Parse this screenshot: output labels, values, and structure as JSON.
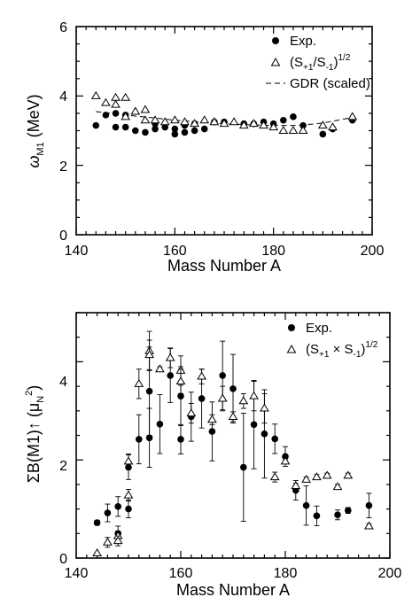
{
  "chart_data": [
    {
      "type": "scatter",
      "title": "",
      "xlabel": "Mass Number A",
      "ylabel": "ω_M1 (MeV)",
      "ylabel_parts": {
        "symbol": "ω",
        "sub": "M1",
        "unit": "(MeV)"
      },
      "xlim": [
        140,
        200
      ],
      "ylim": [
        0,
        6
      ],
      "xticks": [
        "140",
        "160",
        "180",
        "200"
      ],
      "yticks": [
        "0",
        "2",
        "4",
        "6"
      ],
      "legend_position": "top-right",
      "series": [
        {
          "name": "Exp.",
          "legend_parts": {
            "text": "Exp."
          },
          "marker": "filled-circle",
          "x": [
            144,
            146,
            148,
            148,
            150,
            150,
            152,
            154,
            156,
            156,
            158,
            160,
            160,
            162,
            162,
            164,
            164,
            166,
            168,
            170,
            174,
            176,
            178,
            180,
            182,
            184,
            186,
            190,
            192,
            196
          ],
          "y": [
            3.15,
            3.45,
            3.5,
            3.1,
            3.45,
            3.1,
            3.0,
            2.95,
            3.05,
            3.2,
            3.1,
            2.9,
            3.05,
            2.95,
            3.15,
            3.0,
            3.2,
            3.05,
            3.25,
            3.25,
            3.2,
            3.2,
            3.25,
            3.2,
            3.3,
            3.4,
            3.15,
            2.9,
            3.05,
            3.3
          ]
        },
        {
          "name": "(S+1/S-1)^1/2",
          "legend_parts": {
            "open": "(S",
            "sub1": "+1",
            "mid": "/S",
            "sub2": "-1",
            "close": ")",
            "sup": "1/2"
          },
          "marker": "open-triangle",
          "x": [
            144,
            146,
            148,
            148,
            150,
            150,
            152,
            154,
            154,
            156,
            158,
            160,
            162,
            164,
            166,
            168,
            170,
            172,
            174,
            176,
            178,
            180,
            182,
            184,
            186,
            190,
            192,
            196
          ],
          "y": [
            4.0,
            3.8,
            3.95,
            3.75,
            3.95,
            3.4,
            3.55,
            3.6,
            3.3,
            3.3,
            3.25,
            3.3,
            3.25,
            3.2,
            3.3,
            3.25,
            3.2,
            3.25,
            3.15,
            3.2,
            3.15,
            3.1,
            3.0,
            3.0,
            3.0,
            3.15,
            3.1,
            3.4
          ]
        },
        {
          "name": "GDR (scaled)",
          "legend_parts": {
            "text": "GDR (scaled)"
          },
          "marker": "dashed-line",
          "x": [
            144,
            150,
            155,
            160,
            165,
            170,
            175,
            180,
            185,
            190,
            196
          ],
          "y": [
            3.55,
            3.45,
            3.38,
            3.3,
            3.25,
            3.2,
            3.17,
            3.15,
            3.15,
            3.22,
            3.38
          ]
        }
      ]
    },
    {
      "type": "scatter",
      "title": "",
      "xlabel": "Mass Number A",
      "ylabel": "ΣB(M1)↑ (μN²)",
      "ylabel_parts": {
        "main": "ΣB(M1)↑ (μ",
        "sub": "N",
        "sup": "2",
        "close": ")"
      },
      "xlim": [
        140,
        200
      ],
      "ylim": [
        0,
        5
      ],
      "xticks": [
        "140",
        "160",
        "180",
        "200"
      ],
      "yticks": [
        "0",
        "2",
        "4"
      ],
      "legend_position": "top-right",
      "series": [
        {
          "name": "Exp.",
          "legend_parts": {
            "text": "Exp."
          },
          "marker": "filled-circle",
          "x": [
            144,
            146,
            148,
            148,
            150,
            150,
            152,
            154,
            154,
            156,
            158,
            160,
            160,
            162,
            164,
            166,
            168,
            170,
            172,
            174,
            176,
            178,
            180,
            182,
            184,
            186,
            190,
            192,
            196
          ],
          "y": [
            0.72,
            0.92,
            1.05,
            0.5,
            1.85,
            1.0,
            2.42,
            2.45,
            3.4,
            2.73,
            3.72,
            3.3,
            2.42,
            2.88,
            3.25,
            2.58,
            3.72,
            3.45,
            1.85,
            2.72,
            2.53,
            2.43,
            2.07,
            1.38,
            1.07,
            0.86,
            0.88,
            0.97,
            1.07
          ],
          "err": [
            0.05,
            0.18,
            0.2,
            0.15,
            0.25,
            0.18,
            0.5,
            0.6,
            0.9,
            0.6,
            0.55,
            0.6,
            0.3,
            0.5,
            0.6,
            0.6,
            0.7,
            0.7,
            1.1,
            0.9,
            0.9,
            0.3,
            0.2,
            0.2,
            0.4,
            0.2,
            0.1,
            0.06,
            0.25
          ]
        },
        {
          "name": "(S+1×S-1)^1/2",
          "legend_parts": {
            "open": "(S",
            "sub1": "+1",
            "mid": " × S",
            "sub2": "-1",
            "close": ")",
            "sup": "1/2"
          },
          "marker": "open-triangle",
          "x": [
            144,
            146,
            148,
            148,
            150,
            150,
            152,
            154,
            154,
            156,
            158,
            160,
            160,
            162,
            164,
            166,
            168,
            170,
            172,
            174,
            176,
            178,
            180,
            182,
            184,
            186,
            188,
            190,
            192,
            196
          ],
          "y": [
            0.1,
            0.32,
            0.45,
            0.35,
            1.97,
            1.28,
            3.55,
            4.22,
            4.14,
            3.85,
            4.08,
            3.82,
            3.6,
            2.95,
            3.7,
            2.82,
            3.25,
            2.88,
            3.2,
            3.3,
            3.05,
            1.65,
            1.97,
            1.47,
            1.6,
            1.65,
            1.68,
            1.45,
            1.68,
            0.65
          ],
          "err": [
            0,
            0.1,
            0.1,
            0.1,
            0.15,
            0.12,
            0.3,
            0.4,
            0.3,
            0.05,
            0.2,
            0.3,
            0.25,
            0.2,
            0.15,
            0.1,
            0.25,
            0.1,
            0.15,
            0.3,
            0.3,
            0.1,
            0.05,
            0.05,
            0.05,
            0.05,
            0.05,
            0.05,
            0.05,
            0.05
          ]
        }
      ]
    }
  ]
}
